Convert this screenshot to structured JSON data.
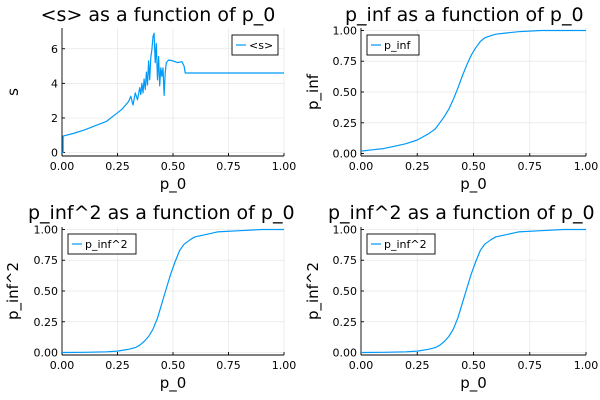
{
  "accent_color": "#009AFA",
  "chart_data": [
    {
      "type": "line",
      "title": "<s> as a function of p_0",
      "xlabel": "p_0",
      "ylabel": "s",
      "xlim": [
        0,
        1
      ],
      "ylim": [
        -0.2,
        7.2
      ],
      "xticks": [
        0,
        0.25,
        0.5,
        0.75,
        1.0
      ],
      "xtick_labels": [
        "0.00",
        "0.25",
        "0.50",
        "0.75",
        "1.00"
      ],
      "yticks": [
        0,
        2,
        4,
        6
      ],
      "ytick_labels": [
        "0",
        "2",
        "4",
        "6"
      ],
      "grid": true,
      "legend": "top-right",
      "series": [
        {
          "name": "<s>",
          "color": "#009AFA",
          "x": [
            0.0,
            0.005,
            0.005,
            0.05,
            0.1,
            0.15,
            0.2,
            0.25,
            0.27,
            0.29,
            0.3,
            0.31,
            0.32,
            0.33,
            0.34,
            0.35,
            0.355,
            0.36,
            0.365,
            0.37,
            0.375,
            0.38,
            0.385,
            0.39,
            0.395,
            0.4,
            0.405,
            0.41,
            0.415,
            0.42,
            0.425,
            0.43,
            0.435,
            0.44,
            0.445,
            0.45,
            0.455,
            0.46,
            0.465,
            0.47,
            0.48,
            0.5,
            0.52,
            0.54,
            0.55,
            0.555,
            0.6,
            0.7,
            0.8,
            0.9,
            1.0
          ],
          "y": [
            0.0,
            0.0,
            0.95,
            1.1,
            1.3,
            1.55,
            1.8,
            2.3,
            2.5,
            2.8,
            2.95,
            3.25,
            2.75,
            3.45,
            3.05,
            3.75,
            3.35,
            4.0,
            3.45,
            4.25,
            3.65,
            4.65,
            3.9,
            5.3,
            4.2,
            5.5,
            5.95,
            6.7,
            6.9,
            5.2,
            6.3,
            4.2,
            5.55,
            3.85,
            4.9,
            4.4,
            4.9,
            3.3,
            4.6,
            5.2,
            5.35,
            5.3,
            5.2,
            5.25,
            5.0,
            4.6,
            4.6,
            4.6,
            4.6,
            4.6,
            4.6
          ]
        }
      ]
    },
    {
      "type": "line",
      "title": "p_inf as a function of p_0",
      "xlabel": "p_0",
      "ylabel": "p_inf",
      "xlim": [
        0,
        1
      ],
      "ylim": [
        -0.02,
        1.02
      ],
      "xticks": [
        0,
        0.25,
        0.5,
        0.75,
        1.0
      ],
      "xtick_labels": [
        "0.00",
        "0.25",
        "0.50",
        "0.75",
        "1.00"
      ],
      "yticks": [
        0,
        0.25,
        0.5,
        0.75,
        1.0
      ],
      "ytick_labels": [
        "0.00",
        "0.25",
        "0.50",
        "0.75",
        "1.00"
      ],
      "grid": true,
      "legend": "top-left",
      "series": [
        {
          "name": "p_inf",
          "color": "#009AFA",
          "x": [
            0.0,
            0.05,
            0.1,
            0.15,
            0.2,
            0.25,
            0.3,
            0.33,
            0.35,
            0.37,
            0.39,
            0.41,
            0.43,
            0.45,
            0.47,
            0.49,
            0.51,
            0.53,
            0.55,
            0.58,
            0.6,
            0.65,
            0.7,
            0.8,
            0.9,
            1.0
          ],
          "y": [
            0.02,
            0.03,
            0.04,
            0.06,
            0.08,
            0.11,
            0.16,
            0.2,
            0.25,
            0.3,
            0.36,
            0.44,
            0.53,
            0.63,
            0.72,
            0.8,
            0.86,
            0.91,
            0.94,
            0.96,
            0.97,
            0.98,
            0.99,
            1.0,
            1.0,
            1.0
          ]
        }
      ]
    },
    {
      "type": "line",
      "title": "p_inf^2 as a function of p_0",
      "xlabel": "p_0",
      "ylabel": "p_inf^2",
      "xlim": [
        0,
        1
      ],
      "ylim": [
        -0.02,
        1.02
      ],
      "xticks": [
        0,
        0.25,
        0.5,
        0.75,
        1.0
      ],
      "xtick_labels": [
        "0.00",
        "0.25",
        "0.50",
        "0.75",
        "1.00"
      ],
      "yticks": [
        0,
        0.25,
        0.5,
        0.75,
        1.0
      ],
      "ytick_labels": [
        "0.00",
        "0.25",
        "0.50",
        "0.75",
        "1.00"
      ],
      "grid": true,
      "legend": "top-left",
      "series": [
        {
          "name": "p_inf^2",
          "color": "#009AFA",
          "x": [
            0.0,
            0.1,
            0.2,
            0.25,
            0.3,
            0.33,
            0.35,
            0.37,
            0.39,
            0.41,
            0.43,
            0.45,
            0.47,
            0.49,
            0.51,
            0.53,
            0.55,
            0.58,
            0.6,
            0.65,
            0.7,
            0.8,
            0.9,
            1.0
          ],
          "y": [
            0.0,
            0.002,
            0.006,
            0.012,
            0.026,
            0.04,
            0.06,
            0.09,
            0.13,
            0.19,
            0.28,
            0.4,
            0.52,
            0.64,
            0.74,
            0.83,
            0.88,
            0.92,
            0.94,
            0.96,
            0.98,
            0.99,
            1.0,
            1.0
          ]
        }
      ]
    },
    {
      "type": "line",
      "title": "p_inf^2 as a function of p_0",
      "xlabel": "p_0",
      "ylabel": "p_inf^2",
      "xlim": [
        0,
        1
      ],
      "ylim": [
        -0.02,
        1.02
      ],
      "xticks": [
        0,
        0.25,
        0.5,
        0.75,
        1.0
      ],
      "xtick_labels": [
        "0.00",
        "0.25",
        "0.50",
        "0.75",
        "1.00"
      ],
      "yticks": [
        0,
        0.25,
        0.5,
        0.75,
        1.0
      ],
      "ytick_labels": [
        "0.00",
        "0.25",
        "0.50",
        "0.75",
        "1.00"
      ],
      "grid": true,
      "legend": "top-left",
      "series": [
        {
          "name": "p_inf^2",
          "color": "#009AFA",
          "x": [
            0.0,
            0.1,
            0.2,
            0.25,
            0.3,
            0.33,
            0.35,
            0.37,
            0.39,
            0.41,
            0.43,
            0.45,
            0.47,
            0.49,
            0.51,
            0.53,
            0.55,
            0.58,
            0.6,
            0.65,
            0.7,
            0.8,
            0.9,
            1.0
          ],
          "y": [
            0.0,
            0.002,
            0.006,
            0.012,
            0.026,
            0.04,
            0.06,
            0.09,
            0.13,
            0.19,
            0.28,
            0.4,
            0.52,
            0.64,
            0.74,
            0.83,
            0.88,
            0.92,
            0.94,
            0.96,
            0.98,
            0.99,
            1.0,
            1.0
          ]
        }
      ]
    }
  ]
}
